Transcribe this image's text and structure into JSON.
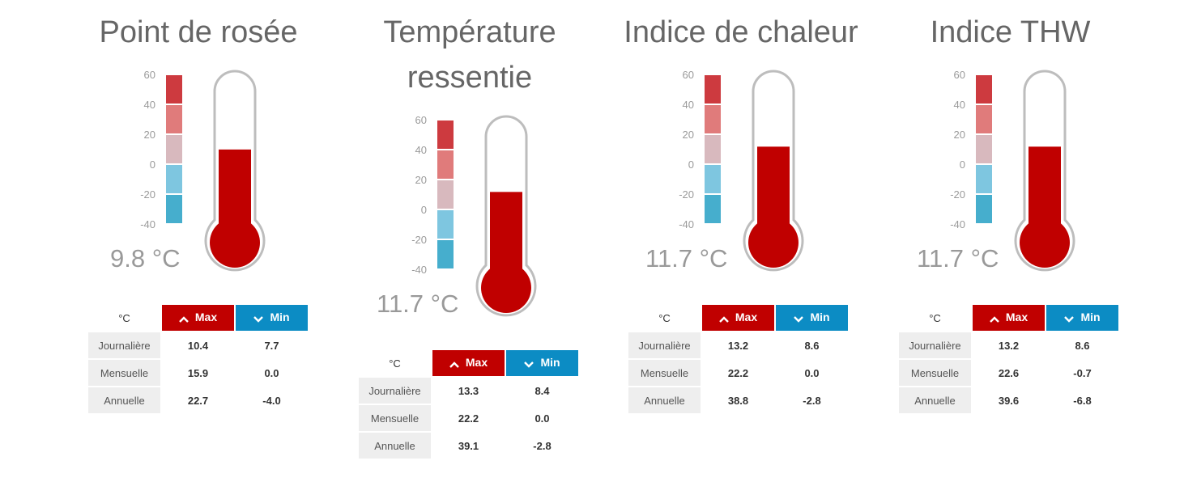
{
  "panels": [
    {
      "title": "Point de rosée",
      "reading": "9.8 °C",
      "value": 9.8,
      "unit_label": "°C",
      "max_label": "Max",
      "min_label": "Min",
      "rows": [
        {
          "label": "Journalière",
          "max": "10.4",
          "min": "7.7"
        },
        {
          "label": "Mensuelle",
          "max": "15.9",
          "min": "0.0"
        },
        {
          "label": "Annuelle",
          "max": "22.7",
          "min": "-4.0"
        }
      ]
    },
    {
      "title": "Température ressentie",
      "reading": "11.7 °C",
      "value": 11.7,
      "unit_label": "°C",
      "max_label": "Max",
      "min_label": "Min",
      "rows": [
        {
          "label": "Journalière",
          "max": "13.3",
          "min": "8.4"
        },
        {
          "label": "Mensuelle",
          "max": "22.2",
          "min": "0.0"
        },
        {
          "label": "Annuelle",
          "max": "39.1",
          "min": "-2.8"
        }
      ]
    },
    {
      "title": "Indice de chaleur",
      "reading": "11.7 °C",
      "value": 11.7,
      "unit_label": "°C",
      "max_label": "Max",
      "min_label": "Min",
      "rows": [
        {
          "label": "Journalière",
          "max": "13.2",
          "min": "8.6"
        },
        {
          "label": "Mensuelle",
          "max": "22.2",
          "min": "0.0"
        },
        {
          "label": "Annuelle",
          "max": "38.8",
          "min": "-2.8"
        }
      ]
    },
    {
      "title": "Indice THW",
      "reading": "11.7 °C",
      "value": 11.7,
      "unit_label": "°C",
      "max_label": "Max",
      "min_label": "Min",
      "rows": [
        {
          "label": "Journalière",
          "max": "13.2",
          "min": "8.6"
        },
        {
          "label": "Mensuelle",
          "max": "22.6",
          "min": "-0.7"
        },
        {
          "label": "Annuelle",
          "max": "39.6",
          "min": "-6.8"
        }
      ]
    }
  ],
  "scale_ticks": [
    "60",
    "40",
    "20",
    "0",
    "-20",
    "-40"
  ],
  "scale_range": [
    -40,
    60
  ],
  "scale_colors": [
    "#cd3a3f",
    "#e07b7b",
    "#d8b9be",
    "#7ec6e0",
    "#46aecd"
  ],
  "mercury_color": "#c00000",
  "max_color": "#c00000",
  "min_color": "#0c8cc4"
}
